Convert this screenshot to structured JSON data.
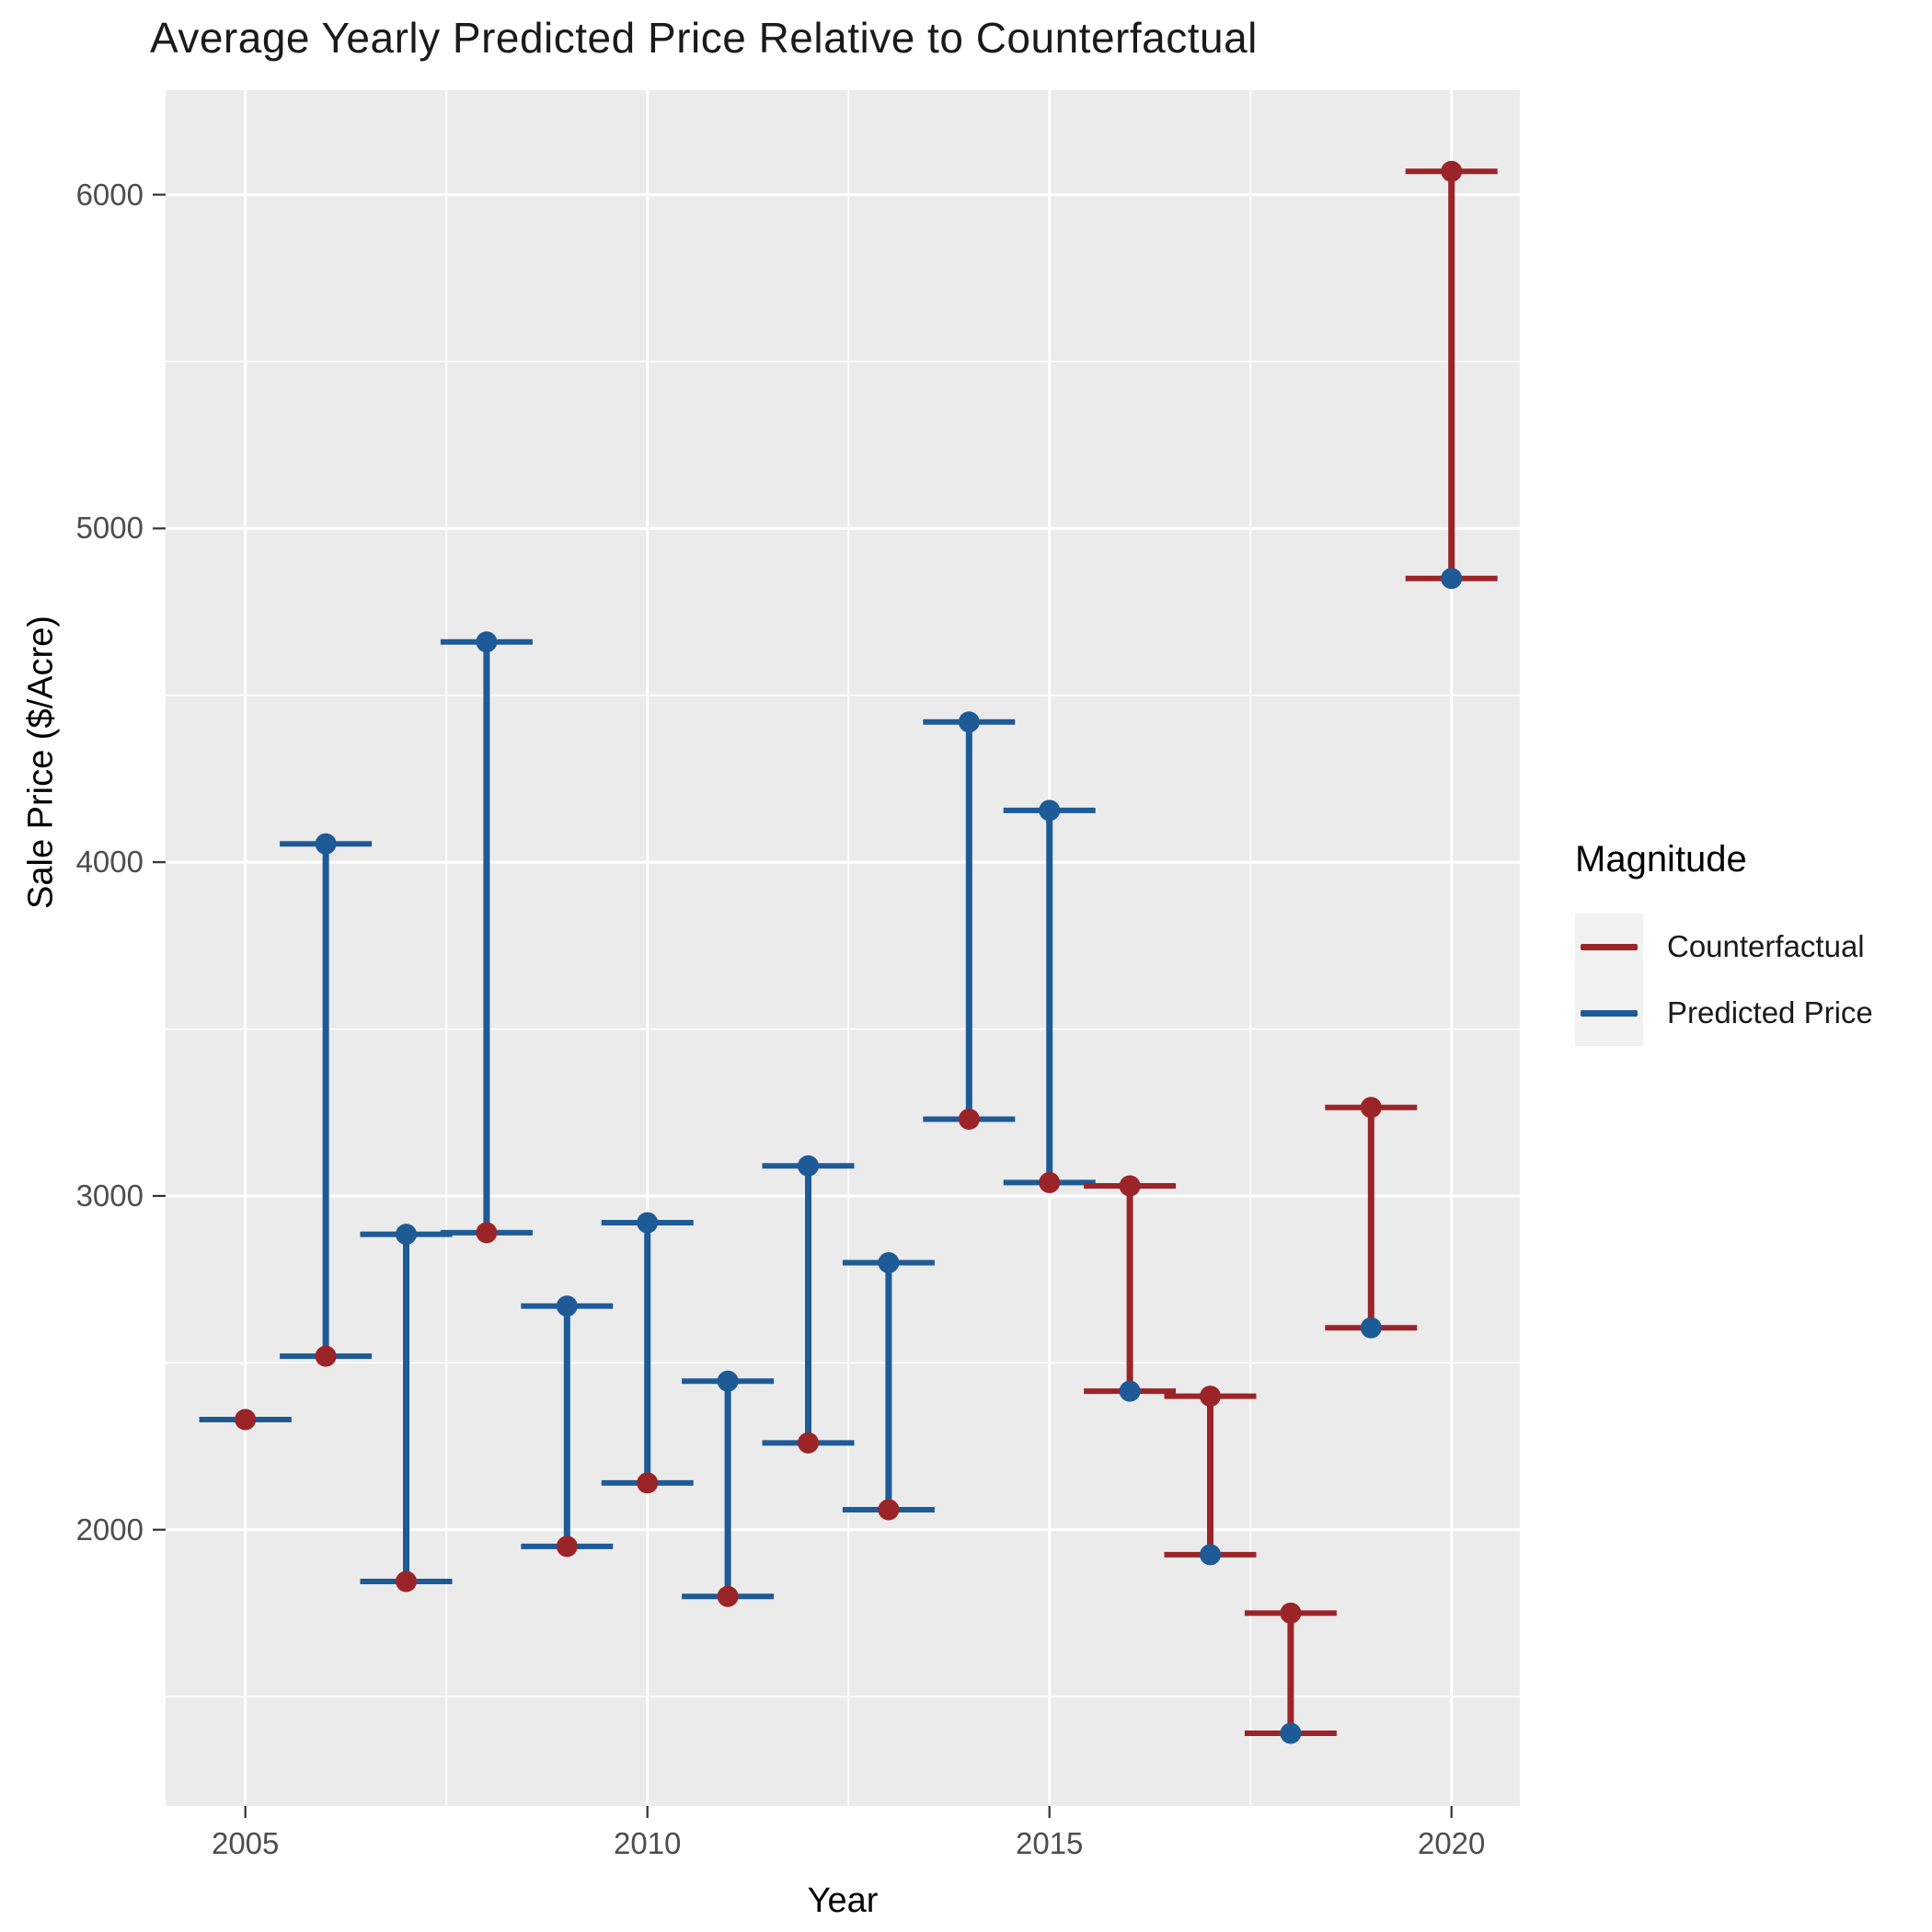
{
  "title": "Average Yearly Predicted Price Relative to Counterfactual",
  "axes": {
    "x_title": "Year",
    "y_title": "Sale Price ($/Acre)",
    "x_tick_labels": [
      "2005",
      "2010",
      "2015",
      "2020"
    ],
    "y_tick_labels": [
      "2000",
      "3000",
      "4000",
      "5000",
      "6000"
    ]
  },
  "legend": {
    "title": "Magnitude",
    "items": [
      {
        "label": "Counterfactual",
        "color": "#9b2428"
      },
      {
        "label": "Predicted Price",
        "color": "#1e5a96"
      }
    ]
  },
  "colors": {
    "counterfactual": "#9b2428",
    "predicted": "#1e5a96",
    "panel_background": "#ebebeb",
    "gridline": "#ffffff",
    "tick_mark": "#333333",
    "tick_text": "#4d4d4d"
  },
  "chart_data": {
    "type": "dumbbell",
    "title": "Average Yearly Predicted Price Relative to Counterfactual",
    "xlabel": "Year",
    "ylabel": "Sale Price ($/Acre)",
    "xlim": [
      2004,
      2020.9
    ],
    "ylim": [
      1170,
      6320
    ],
    "x_major_ticks": [
      2005,
      2010,
      2015,
      2020
    ],
    "x_minor_gridlines": [
      2007.5,
      2012.5,
      2017.5
    ],
    "y_major_ticks": [
      2000,
      3000,
      4000,
      5000,
      6000
    ],
    "y_minor_gridlines": [
      1500,
      2500,
      3500,
      4500,
      5500
    ],
    "grid": "white-on-gray",
    "legend_position": "right",
    "series_names": [
      "Predicted Price",
      "Counterfactual"
    ],
    "years": [
      {
        "year": 2005,
        "predicted": 2330,
        "counterfactual": 2330
      },
      {
        "year": 2006,
        "predicted": 4055,
        "counterfactual": 2520
      },
      {
        "year": 2007,
        "predicted": 2885,
        "counterfactual": 1845
      },
      {
        "year": 2008,
        "predicted": 4660,
        "counterfactual": 2890
      },
      {
        "year": 2009,
        "predicted": 2670,
        "counterfactual": 1950
      },
      {
        "year": 2010,
        "predicted": 2920,
        "counterfactual": 2140
      },
      {
        "year": 2011,
        "predicted": 2445,
        "counterfactual": 1800
      },
      {
        "year": 2012,
        "predicted": 3090,
        "counterfactual": 2260
      },
      {
        "year": 2013,
        "predicted": 2800,
        "counterfactual": 2060
      },
      {
        "year": 2014,
        "predicted": 4420,
        "counterfactual": 3230
      },
      {
        "year": 2015,
        "predicted": 4155,
        "counterfactual": 3040
      },
      {
        "year": 2016,
        "predicted": 2415,
        "counterfactual": 3030
      },
      {
        "year": 2017,
        "predicted": 1925,
        "counterfactual": 2400
      },
      {
        "year": 2018,
        "predicted": 1390,
        "counterfactual": 1750
      },
      {
        "year": 2019,
        "predicted": 2605,
        "counterfactual": 3265
      },
      {
        "year": 2020,
        "predicted": 4850,
        "counterfactual": 6070
      }
    ]
  }
}
